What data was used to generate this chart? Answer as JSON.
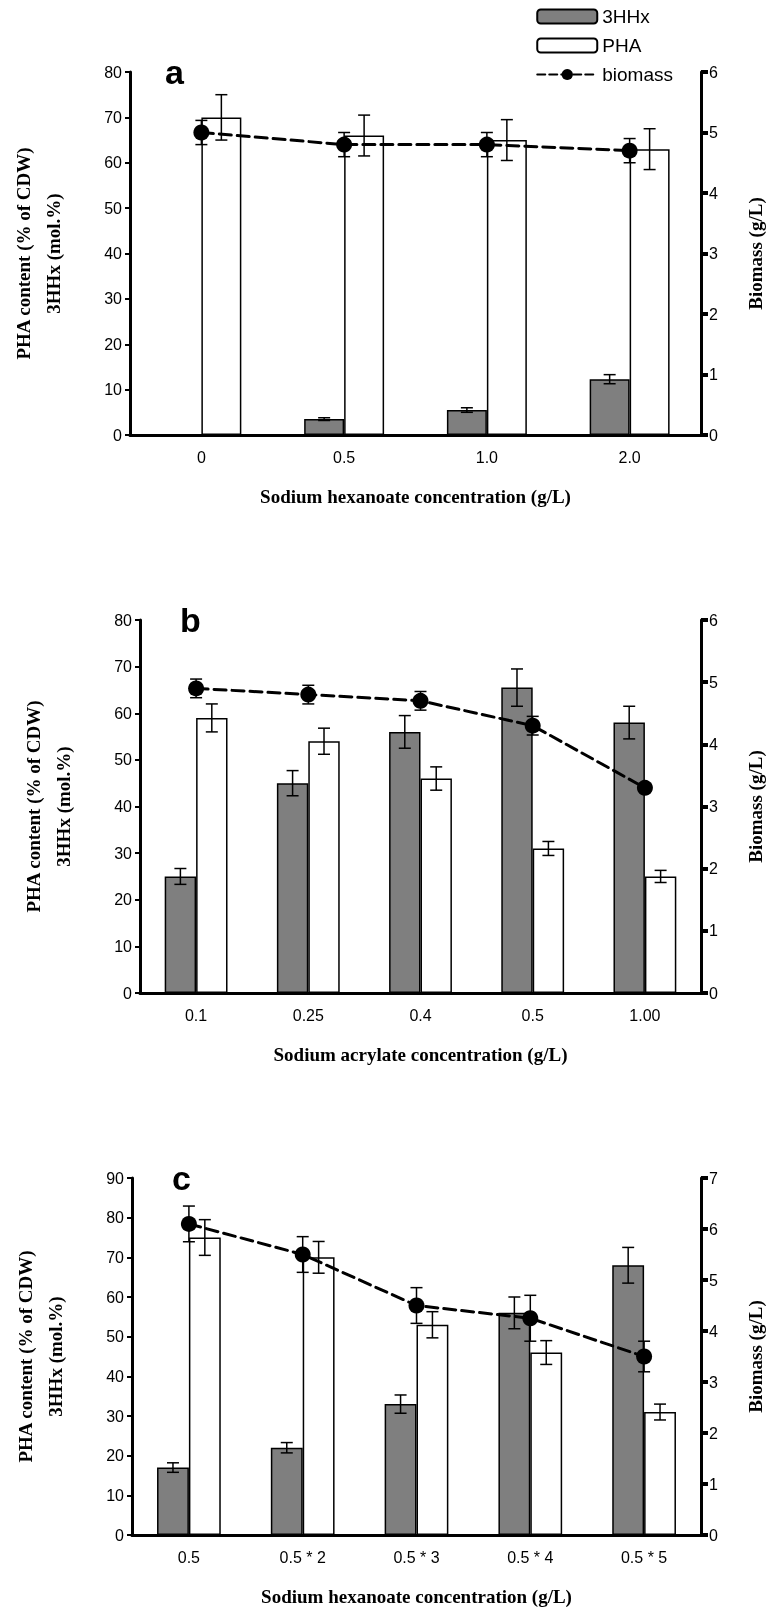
{
  "chart_data": [
    {
      "type": "bar",
      "title": "a",
      "xlabel": "Sodium hexanoate concentration (g/L)",
      "ylabel": "PHA content (% of CDW)\n3HHx (mol.%)",
      "y2label": "Biomass (g/L)",
      "categories": [
        "0",
        "0.5",
        "1.0",
        "2.0"
      ],
      "ylim": [
        0,
        80
      ],
      "yticks": [
        0,
        10,
        20,
        30,
        40,
        50,
        60,
        70,
        80
      ],
      "y2lim": [
        0,
        6
      ],
      "y2ticks": [
        0,
        1,
        2,
        3,
        4,
        5,
        6
      ],
      "legend": "top right",
      "series": [
        {
          "name": "3HHx",
          "color": "#7f7f7f",
          "values": [
            null,
            3.5,
            5.5,
            12.3
          ],
          "errors": [
            null,
            0.3,
            0.5,
            1
          ]
        },
        {
          "name": "PHA",
          "color": "#ffffff",
          "values": [
            70,
            66,
            65,
            63
          ],
          "errors": [
            5,
            4.5,
            4.5,
            4.5
          ]
        },
        {
          "name": "biomass",
          "type": "line",
          "axis": "y2",
          "color": "#000000",
          "marker": "circle",
          "line_style": "dashed",
          "values": [
            5.0,
            4.8,
            4.8,
            4.7
          ],
          "errors": [
            0.2,
            0.2,
            0.2,
            0.2
          ]
        }
      ]
    },
    {
      "type": "bar",
      "title": "b",
      "xlabel": "Sodium acrylate concentration (g/L)",
      "ylabel": "PHA content (% of CDW)\n3HHx (mol.%)",
      "y2label": "Biomass (g/L)",
      "categories": [
        "0.1",
        "0.25",
        "0.4",
        "0.5",
        "1.00"
      ],
      "ylim": [
        0,
        80
      ],
      "yticks": [
        0,
        10,
        20,
        30,
        40,
        50,
        60,
        70,
        80
      ],
      "y2lim": [
        0,
        6
      ],
      "y2ticks": [
        0,
        1,
        2,
        3,
        4,
        5,
        6
      ],
      "series": [
        {
          "color": "#7f7f7f",
          "values": [
            25,
            45,
            56,
            65.5,
            58
          ],
          "errors": [
            1.7,
            2.7,
            3.5,
            4,
            3.5
          ]
        },
        {
          "color": "#ffffff",
          "values": [
            59,
            54,
            46,
            31,
            25
          ],
          "errors": [
            3,
            2.8,
            2.5,
            1.5,
            1.3
          ]
        },
        {
          "type": "line",
          "axis": "y2",
          "color": "#000000",
          "marker": "circle",
          "line_style": "dashed",
          "values": [
            4.9,
            4.8,
            4.7,
            4.3,
            3.3
          ],
          "errors": [
            0.15,
            0.15,
            0.15,
            0.15,
            null
          ]
        }
      ]
    },
    {
      "type": "bar",
      "title": "c",
      "xlabel": "Sodium hexanoate concentration (g/L)",
      "ylabel": "PHA content (% of CDW)\n3HHx (mol.%)",
      "y2label": "Biomass (g/L)",
      "categories": [
        "0.5",
        "0.5 * 2",
        "0.5 * 3",
        "0.5 * 4",
        "0.5 * 5"
      ],
      "ylim": [
        0,
        90
      ],
      "yticks": [
        0,
        10,
        20,
        30,
        40,
        50,
        60,
        70,
        80,
        90
      ],
      "y2lim": [
        0,
        7
      ],
      "y2ticks": [
        0,
        1,
        2,
        3,
        4,
        5,
        6,
        7
      ],
      "series": [
        {
          "color": "#7f7f7f",
          "values": [
            17,
            22,
            33,
            56,
            68
          ],
          "errors": [
            1.2,
            1.3,
            2.3,
            4,
            4.5
          ]
        },
        {
          "color": "#ffffff",
          "values": [
            75,
            70,
            53,
            46,
            31
          ],
          "errors": [
            4.5,
            4,
            3.3,
            3,
            2
          ]
        },
        {
          "type": "line",
          "axis": "y2",
          "color": "#000000",
          "marker": "circle",
          "line_style": "dashed",
          "values": [
            6.1,
            5.5,
            4.5,
            4.25,
            3.5
          ],
          "errors": [
            0.35,
            0.35,
            0.35,
            0.45,
            0.3
          ]
        }
      ]
    }
  ]
}
